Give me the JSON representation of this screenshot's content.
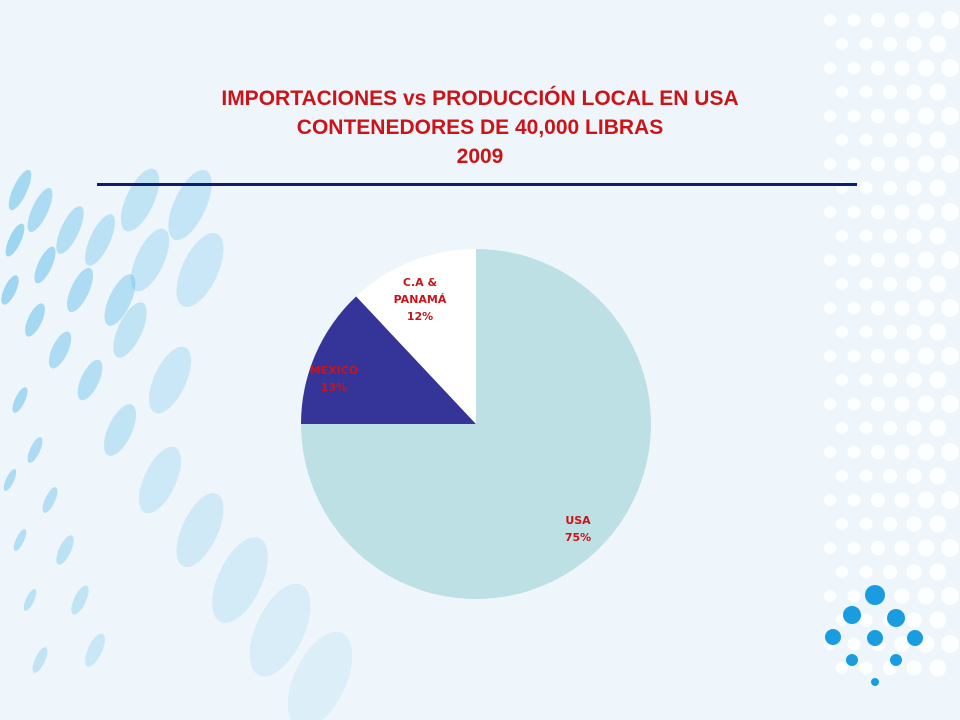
{
  "slide": {
    "title_lines": [
      "IMPORTACIONES  vs PRODUCCIÓN LOCAL EN USA",
      "CONTENEDORES DE 40,000 LIBRAS",
      "2009"
    ]
  },
  "chart_data": {
    "type": "pie",
    "title": "IMPORTACIONES  vs PRODUCCIÓN LOCAL EN USA CONTENEDORES DE 40,000 LIBRAS 2009",
    "slices": [
      {
        "name": "USA",
        "value": 75,
        "value_label": "75%",
        "color": "#bde0e4"
      },
      {
        "name": "MEXICO",
        "value": 13,
        "value_label": "13%",
        "color": "#343499"
      },
      {
        "name": "C.A & PANAMÁ",
        "value": 12,
        "value_label": "12%",
        "color": "#ffffff"
      }
    ],
    "label_color": "#cc1418",
    "title_color": "#cc1418",
    "rule_color": "#0b1f6e"
  }
}
